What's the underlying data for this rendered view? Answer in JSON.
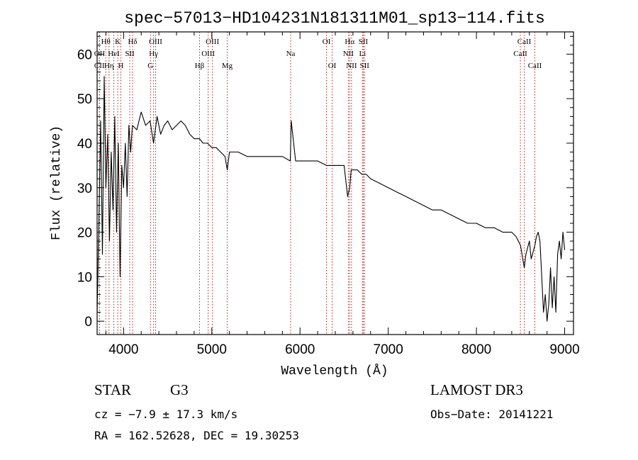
{
  "chart_data": {
    "type": "line",
    "title": "spec−57013−HD104231N181311M01_sp13−114.fits",
    "xlabel": "Wavelength (Å)",
    "ylabel": "Flux (relative)",
    "xlim": [
      3700,
      9100
    ],
    "ylim": [
      -3,
      65
    ],
    "xticks": [
      4000,
      5000,
      6000,
      7000,
      8000,
      9000
    ],
    "yticks": [
      0,
      10,
      20,
      30,
      40,
      50,
      60
    ],
    "series": [
      {
        "name": "flux",
        "x": [
          3700,
          3720,
          3740,
          3760,
          3780,
          3800,
          3820,
          3840,
          3860,
          3880,
          3900,
          3920,
          3940,
          3960,
          3980,
          4000,
          4020,
          4040,
          4060,
          4080,
          4100,
          4150,
          4200,
          4250,
          4300,
          4340,
          4380,
          4420,
          4460,
          4500,
          4550,
          4600,
          4650,
          4700,
          4750,
          4800,
          4861,
          4900,
          4950,
          5000,
          5050,
          5100,
          5150,
          5175,
          5200,
          5250,
          5300,
          5400,
          5500,
          5600,
          5700,
          5800,
          5890,
          5900,
          5950,
          6000,
          6100,
          6200,
          6300,
          6400,
          6500,
          6540,
          6563,
          6580,
          6600,
          6650,
          6700,
          6750,
          6800,
          6900,
          7000,
          7100,
          7200,
          7300,
          7400,
          7500,
          7600,
          7700,
          7800,
          7900,
          8000,
          8100,
          8200,
          8300,
          8400,
          8450,
          8500,
          8542,
          8560,
          8600,
          8620,
          8662,
          8680,
          8700,
          8720,
          8740,
          8760,
          8780,
          8800,
          8820,
          8840,
          8860,
          8880,
          8900,
          8920,
          8940,
          8960,
          8980,
          9000
        ],
        "y": [
          2,
          22,
          45,
          15,
          55,
          30,
          42,
          18,
          38,
          25,
          46,
          20,
          40,
          10,
          35,
          30,
          40,
          28,
          44,
          38,
          44,
          43,
          47,
          44,
          45,
          40,
          46,
          42,
          44,
          45,
          43,
          44,
          45,
          44,
          42,
          41,
          41,
          40,
          40,
          39,
          39,
          38,
          37,
          34,
          38,
          38,
          38,
          37,
          37,
          37,
          37,
          37,
          36,
          45,
          36,
          36,
          36,
          36,
          35,
          35,
          35,
          28,
          30,
          34,
          34,
          34,
          33,
          33,
          32,
          31,
          30,
          29,
          28,
          27,
          26,
          25,
          25,
          24,
          23,
          22,
          22,
          21,
          21,
          20,
          20,
          19,
          17,
          12,
          15,
          18,
          14,
          17,
          19,
          20,
          18,
          10,
          2,
          6,
          0,
          4,
          12,
          3,
          10,
          2,
          15,
          18,
          14,
          20,
          16
        ],
        "color": "#000000"
      }
    ],
    "lines": [
      {
        "label": "CII",
        "x": 3726,
        "row": 2
      },
      {
        "label": "Hθ",
        "x": 3798,
        "row": 0
      },
      {
        "label": "OII",
        "x": 3727,
        "row": 1
      },
      {
        "label": "Hη",
        "x": 3835,
        "row": 2
      },
      {
        "label": "HeI",
        "x": 3889,
        "row": 1
      },
      {
        "label": "K",
        "x": 3934,
        "row": 0
      },
      {
        "label": "SII",
        "x": 4070,
        "row": 1
      },
      {
        "label": "H",
        "x": 3969,
        "row": 2
      },
      {
        "label": "Hδ",
        "x": 4102,
        "row": 0
      },
      {
        "label": "OIII",
        "x": 4363,
        "row": 0
      },
      {
        "label": "Hγ",
        "x": 4340,
        "row": 1
      },
      {
        "label": "G",
        "x": 4305,
        "row": 2
      },
      {
        "label": "Hβ",
        "x": 4861,
        "row": 2
      },
      {
        "label": "OIII",
        "x": 5007,
        "row": 0
      },
      {
        "label": "OIII",
        "x": 4959,
        "row": 1
      },
      {
        "label": "Mg",
        "x": 5175,
        "row": 2
      },
      {
        "label": "Na",
        "x": 5894,
        "row": 1
      },
      {
        "label": "OI",
        "x": 6300,
        "row": 0
      },
      {
        "label": "OI",
        "x": 6364,
        "row": 2
      },
      {
        "label": "Hα",
        "x": 6563,
        "row": 0
      },
      {
        "label": "NII",
        "x": 6548,
        "row": 1
      },
      {
        "label": "NII",
        "x": 6584,
        "row": 2
      },
      {
        "label": "SII",
        "x": 6717,
        "row": 0
      },
      {
        "label": "Li",
        "x": 6708,
        "row": 1
      },
      {
        "label": "SII",
        "x": 6731,
        "row": 2
      },
      {
        "label": "CaII",
        "x": 8542,
        "row": 0
      },
      {
        "label": "CaII",
        "x": 8498,
        "row": 1
      },
      {
        "label": "CaII",
        "x": 8662,
        "row": 2
      }
    ]
  },
  "info": {
    "class_label": "STAR",
    "subclass": "G3",
    "survey": "LAMOST DR3",
    "cz": "cz = −7.9 ± 17.3 km/s",
    "obs_date": "Obs−Date: 20141221",
    "radec": "RA = 162.52628, DEC =  19.30253"
  }
}
